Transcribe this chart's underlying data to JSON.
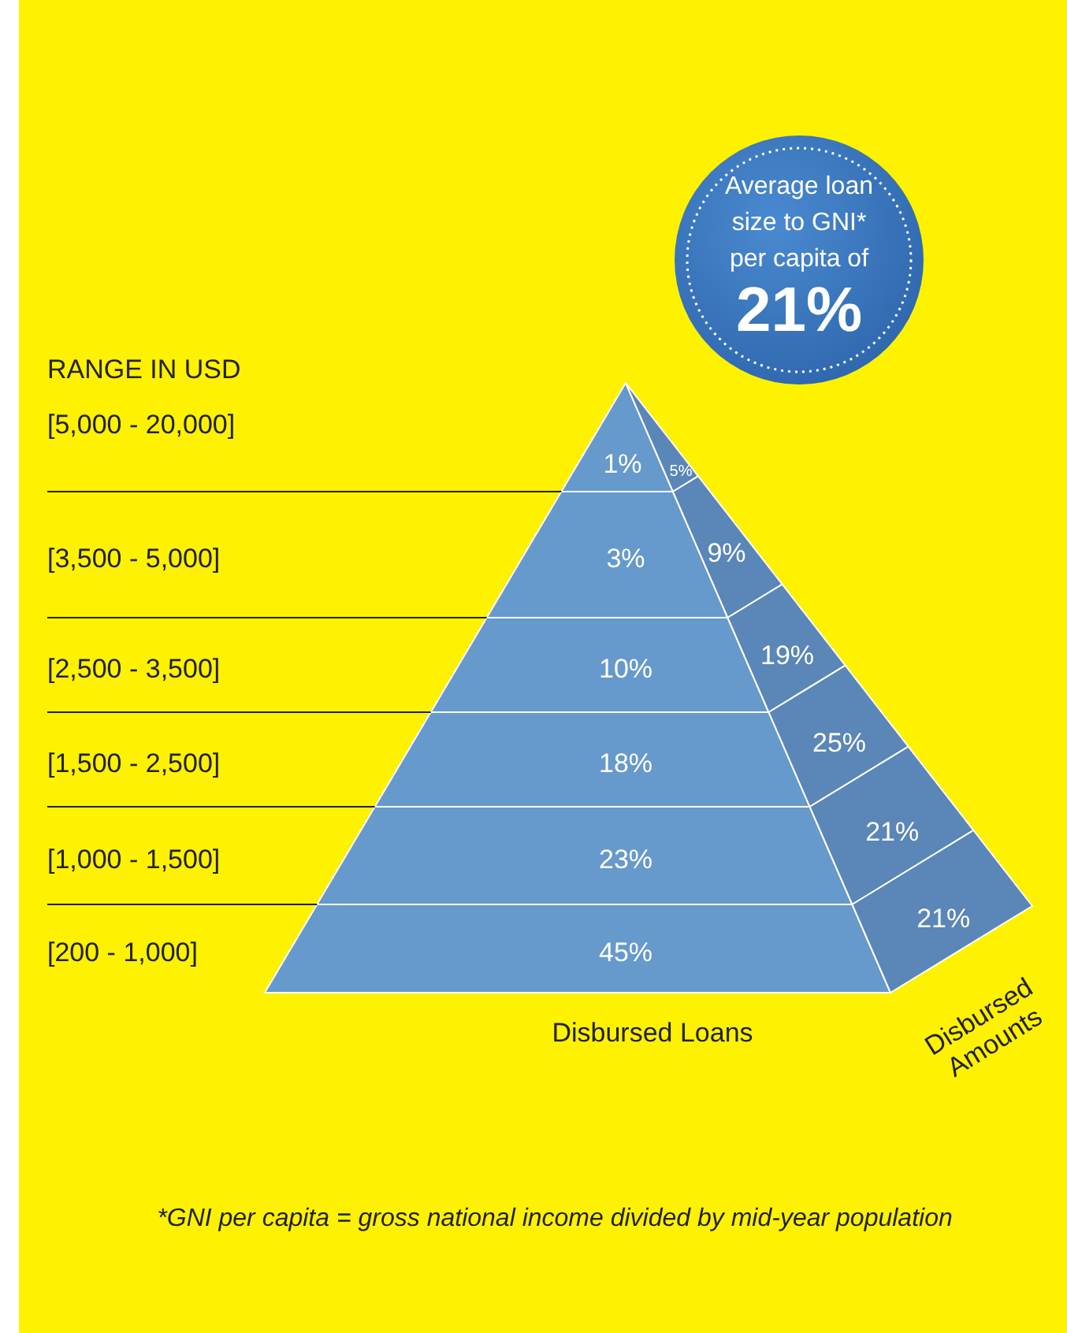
{
  "chart_data": {
    "type": "other",
    "ylabel": "RANGE IN USD",
    "categories": [
      "[5,000 - 20,000]",
      "[3,500 - 5,000]",
      "[2,500 - 3,500]",
      "[1,500 - 2,500]",
      "[1,000 - 1,500]",
      "[200 - 1,000]"
    ],
    "series": [
      {
        "name": "Disbursed Loans",
        "color": "#6699cc",
        "values": [
          1,
          3,
          10,
          18,
          23,
          45
        ],
        "value_labels": [
          "1%",
          "3%",
          "10%",
          "18%",
          "23%",
          "45%"
        ]
      },
      {
        "name": "Disbursed Amounts",
        "color": "#5a86b8",
        "values": [
          5,
          9,
          19,
          25,
          21,
          21
        ],
        "value_labels": [
          "5%",
          "9%",
          "19%",
          "25%",
          "21%",
          "21%"
        ]
      }
    ],
    "data_labels": true,
    "annotations": [
      "Average loan size to GNI* per capita of",
      "21%",
      "*GNI per capita = gross national income divided by mid-year population"
    ]
  }
}
